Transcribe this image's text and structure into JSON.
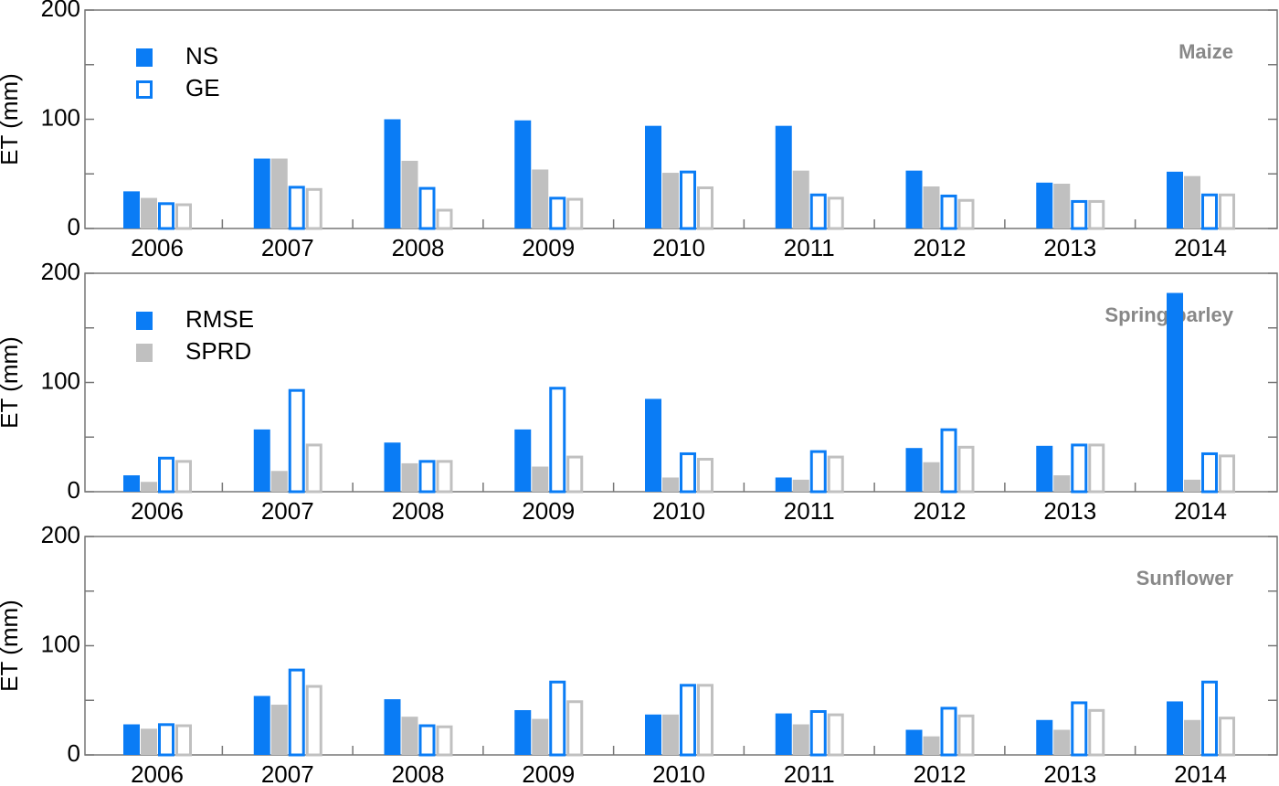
{
  "chart_data": [
    {
      "type": "bar",
      "title": "Maize",
      "ylabel": "ET (mm)",
      "categories": [
        "2006",
        "2007",
        "2008",
        "2009",
        "2010",
        "2011",
        "2012",
        "2013",
        "2014"
      ],
      "ylim": [
        0,
        200
      ],
      "yticks": [
        0,
        100,
        200
      ],
      "yminor": [
        50,
        150
      ],
      "legend": [
        {
          "label": "NS",
          "color": "#0a7cf5",
          "filled": true
        },
        {
          "label": "GE",
          "color": "#0a7cf5",
          "filled": false
        }
      ],
      "series": [
        {
          "color": "#0a7cf5",
          "filled": true,
          "values": [
            34,
            64,
            100,
            99,
            94,
            94,
            53,
            42,
            52
          ]
        },
        {
          "color": "#c0c0c0",
          "filled": true,
          "values": [
            28,
            64,
            62,
            54,
            51,
            53,
            38.5,
            41,
            48
          ]
        },
        {
          "color": "#0a7cf5",
          "filled": false,
          "values": [
            24,
            39,
            38,
            29,
            53,
            32,
            31,
            26,
            32
          ]
        },
        {
          "color": "#c0c0c0",
          "filled": false,
          "values": [
            23,
            37,
            18,
            28,
            38.5,
            29,
            27,
            26,
            32
          ]
        }
      ]
    },
    {
      "type": "bar",
      "title": "Spring barley",
      "ylabel": "ET (mm)",
      "categories": [
        "2006",
        "2007",
        "2008",
        "2009",
        "2010",
        "2011",
        "2012",
        "2013",
        "2014"
      ],
      "ylim": [
        0,
        200
      ],
      "yticks": [
        0,
        100,
        200
      ],
      "yminor": [
        50,
        150
      ],
      "legend": [
        {
          "label": "RMSE",
          "color": "#0a7cf5",
          "filled": true
        },
        {
          "label": "SPRD",
          "color": "#c0c0c0",
          "filled": true
        }
      ],
      "series": [
        {
          "color": "#0a7cf5",
          "filled": true,
          "values": [
            15,
            57,
            45,
            57,
            85,
            13,
            40,
            42,
            182
          ]
        },
        {
          "color": "#c0c0c0",
          "filled": true,
          "values": [
            9,
            19,
            26,
            23,
            13,
            11,
            27,
            15,
            11
          ]
        },
        {
          "color": "#0a7cf5",
          "filled": false,
          "values": [
            32,
            94,
            29,
            96,
            36,
            38,
            58,
            44,
            36
          ]
        },
        {
          "color": "#c0c0c0",
          "filled": false,
          "values": [
            29,
            44,
            29,
            33,
            31,
            33,
            42,
            44,
            34
          ]
        }
      ]
    },
    {
      "type": "bar",
      "title": "Sunflower",
      "ylabel": "ET (mm)",
      "categories": [
        "2006",
        "2007",
        "2008",
        "2009",
        "2010",
        "2011",
        "2012",
        "2013",
        "2014"
      ],
      "ylim": [
        0,
        200
      ],
      "yticks": [
        0,
        100,
        200
      ],
      "yminor": [
        50,
        150
      ],
      "series": [
        {
          "color": "#0a7cf5",
          "filled": true,
          "values": [
            28,
            54,
            51,
            41,
            37,
            38,
            23,
            32,
            49
          ]
        },
        {
          "color": "#c0c0c0",
          "filled": true,
          "values": [
            24,
            46,
            35,
            33,
            37,
            28,
            17,
            23,
            32
          ]
        },
        {
          "color": "#0a7cf5",
          "filled": false,
          "values": [
            29,
            79,
            28,
            68,
            65,
            41,
            44,
            49,
            68
          ]
        },
        {
          "color": "#c0c0c0",
          "filled": false,
          "values": [
            28,
            64,
            27,
            50,
            65,
            38,
            37,
            42,
            35
          ]
        }
      ]
    }
  ]
}
